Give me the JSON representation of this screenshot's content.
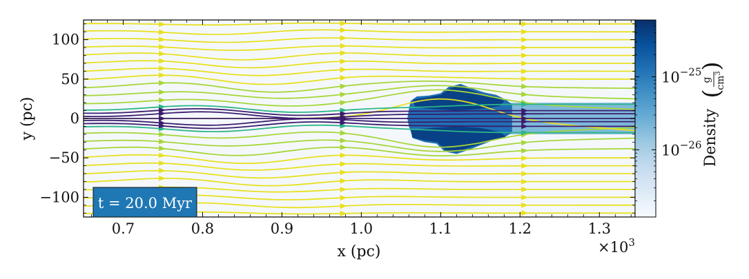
{
  "chart_data": {
    "type": "heatmap",
    "title": "",
    "xlabel": "x  (pc)",
    "ylabel": "y  (pc)",
    "x_multiplier": "×10",
    "x_multiplier_exp": "3",
    "xlim": [
      0.65,
      1.345
    ],
    "ylim": [
      -125,
      125
    ],
    "x_ticks": [
      0.7,
      0.8,
      0.9,
      1.0,
      1.1,
      1.2,
      1.3
    ],
    "x_tick_labels": [
      "0.7",
      "0.8",
      "0.9",
      "1.0",
      "1.1",
      "1.2",
      "1.3"
    ],
    "y_ticks": [
      100,
      50,
      0,
      -50,
      -100
    ],
    "y_tick_labels": [
      "100",
      "50",
      "0",
      "−50",
      "−100"
    ],
    "grid": false,
    "annotation": "t = 20.0 Myr",
    "colorbar": {
      "label": "Density",
      "units_num": "g",
      "units_den": "cm",
      "units_den_exp": "3",
      "scale": "log",
      "range": [
        1.2e-27,
        6e-25
      ],
      "ticks": [
        {
          "value": 1e-25,
          "base": "10",
          "exp": "−25"
        },
        {
          "value": 1e-26,
          "base": "10",
          "exp": "−26"
        }
      ],
      "colormap": [
        "#f7fbff",
        "#deebf7",
        "#c6dbef",
        "#9ecae1",
        "#6baed6",
        "#4292c6",
        "#2171b5",
        "#08519c",
        "#08306b"
      ]
    },
    "background_density": 1.5e-27,
    "cloud": {
      "density": 4e-25,
      "x_range": [
        1.06,
        1.19
      ],
      "y_range": [
        -43,
        43
      ],
      "tail_x_range": [
        1.15,
        1.345
      ],
      "tail_y_range": [
        -20,
        20
      ]
    },
    "streamline_colors": {
      "outer": "#e8e020",
      "middle": "#a7d63a",
      "inner": "#2db589",
      "core": "#3b1c6e"
    }
  }
}
